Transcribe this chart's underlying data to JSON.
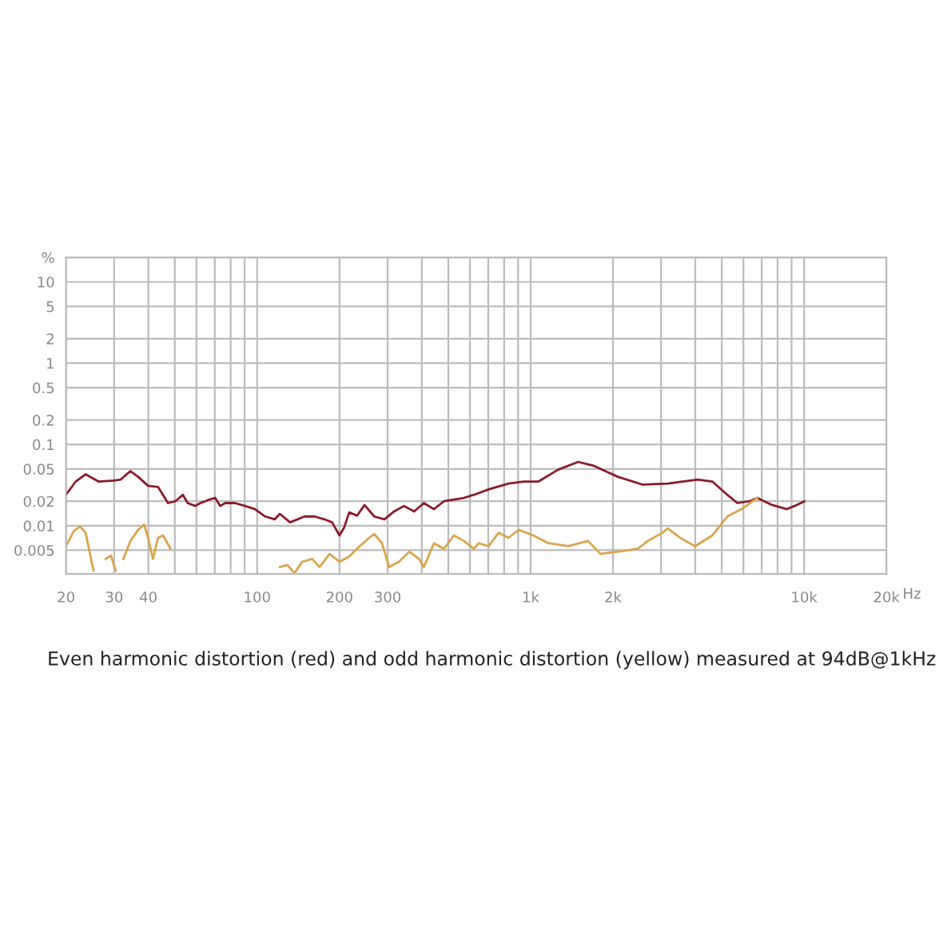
{
  "chart_data": {
    "type": "line",
    "log": "xy",
    "grid": true,
    "legend": false,
    "annotations": [
      "Even harmonic distortion (red) and odd harmonic distortion (yellow) measured at 94dB@1kHz"
    ],
    "xlim": [
      20,
      20000
    ],
    "ylim": [
      0.00256,
      20
    ],
    "xticks": [
      20,
      30,
      40,
      {
        "value": 50,
        "label": null
      },
      {
        "value": 60,
        "label": null
      },
      {
        "value": 70,
        "label": null
      },
      {
        "value": 80,
        "label": null
      },
      {
        "value": 90,
        "label": null
      },
      100,
      200,
      300,
      {
        "value": 400,
        "label": null
      },
      {
        "value": 500,
        "label": null
      },
      {
        "value": 600,
        "label": null
      },
      {
        "value": 700,
        "label": null
      },
      {
        "value": 800,
        "label": null
      },
      {
        "value": 900,
        "label": null
      },
      {
        "value": 1000,
        "label": "1k"
      },
      {
        "value": 2000,
        "label": "2k"
      },
      {
        "value": 3000,
        "label": null
      },
      {
        "value": 4000,
        "label": null
      },
      {
        "value": 5000,
        "label": null
      },
      {
        "value": 6000,
        "label": null
      },
      {
        "value": 7000,
        "label": null
      },
      {
        "value": 8000,
        "label": null
      },
      {
        "value": 9000,
        "label": null
      },
      {
        "value": 10000,
        "label": "10k"
      },
      {
        "value": 20000,
        "label": "20k"
      }
    ],
    "xlabel": "Hz",
    "yticks": [
      0.005,
      0.01,
      0.02,
      0.05,
      0.1,
      0.2,
      0.5,
      1,
      2,
      5,
      10,
      {
        "value": 20,
        "label": "%"
      }
    ],
    "series": [
      {
        "color": "#8b1a2b",
        "x": [
          20,
          21.7,
          23.6,
          26.3,
          29.8,
          31.7,
          34.4,
          36.7,
          39.9,
          43.4,
          47.2,
          50.2,
          53.5,
          55.7,
          59.4,
          62,
          64.6,
          66.8,
          70.2,
          73.3,
          76.4,
          83,
          90.3,
          98.2,
          107,
          116,
          121,
          132,
          149,
          162,
          176,
          188,
          200,
          208,
          217,
          232,
          247,
          268,
          292,
          317,
          344,
          375,
          407,
          443,
          482,
          524,
          570,
          620,
          702,
          830,
          942,
          1068,
          1262,
          1492,
          1692,
          2084,
          2570,
          3170,
          4074,
          4620,
          5240,
          5700,
          6320,
          6740,
          7640,
          8650,
          9220,
          10020
        ],
        "values": [
          0.024,
          0.035,
          0.043,
          0.035,
          0.036,
          0.037,
          0.047,
          0.04,
          0.031,
          0.03,
          0.019,
          0.02,
          0.024,
          0.019,
          0.0175,
          0.019,
          0.02,
          0.021,
          0.022,
          0.0175,
          0.019,
          0.019,
          0.0175,
          0.016,
          0.013,
          0.012,
          0.014,
          0.011,
          0.013,
          0.013,
          0.012,
          0.011,
          0.0076,
          0.0095,
          0.0146,
          0.0133,
          0.018,
          0.013,
          0.012,
          0.015,
          0.0175,
          0.015,
          0.019,
          0.016,
          0.02,
          0.021,
          0.022,
          0.024,
          0.028,
          0.033,
          0.035,
          0.035,
          0.049,
          0.061,
          0.055,
          0.04,
          0.032,
          0.033,
          0.037,
          0.035,
          0.024,
          0.019,
          0.02,
          0.022,
          0.018,
          0.016,
          0.0175,
          0.02
        ]
      },
      {
        "color": "#d9a54a",
        "x": [
          20,
          21.3,
          22.5,
          23.6,
          25.2,
          25.7,
          26.5,
          27.9,
          29.2,
          30.4,
          31.4,
          32.4,
          34.4,
          36.7,
          38.6,
          39.9,
          41.6,
          43.4,
          45.3,
          48.2,
          51.3,
          80,
          121,
          129,
          137,
          146,
          159,
          169,
          184,
          200,
          217,
          237,
          257,
          268,
          286,
          304,
          330,
          360,
          391,
          407,
          443,
          482,
          524,
          570,
          620,
          646,
          702,
          764,
          830,
          904,
          1024,
          1160,
          1372,
          1622,
          1802,
          2084,
          2466,
          2680,
          3040,
          3170,
          3520,
          3990,
          4620,
          5240,
          5940,
          6740
        ],
        "values": [
          0.0056,
          0.0085,
          0.0098,
          0.0082,
          0.0028,
          null,
          null,
          0.0039,
          0.0043,
          0.0028,
          null,
          0.0039,
          0.0065,
          0.0089,
          0.0103,
          0.0071,
          0.0039,
          0.0071,
          0.0076,
          0.0052,
          null,
          null,
          0.0031,
          0.0033,
          0.0026,
          0.0036,
          0.0039,
          0.0031,
          0.0045,
          0.0036,
          0.0042,
          0.0056,
          0.0071,
          0.0079,
          0.0061,
          0.0031,
          0.0036,
          0.0048,
          0.0039,
          0.0031,
          0.0061,
          0.0052,
          0.0076,
          0.0065,
          0.0052,
          0.0061,
          0.0056,
          0.0082,
          0.0071,
          0.0089,
          0.0076,
          0.0061,
          0.0056,
          0.0065,
          0.0045,
          0.0048,
          0.0052,
          0.0065,
          0.0082,
          0.0093,
          0.0071,
          0.0056,
          0.0076,
          0.013,
          0.0162,
          0.022
        ]
      }
    ]
  }
}
